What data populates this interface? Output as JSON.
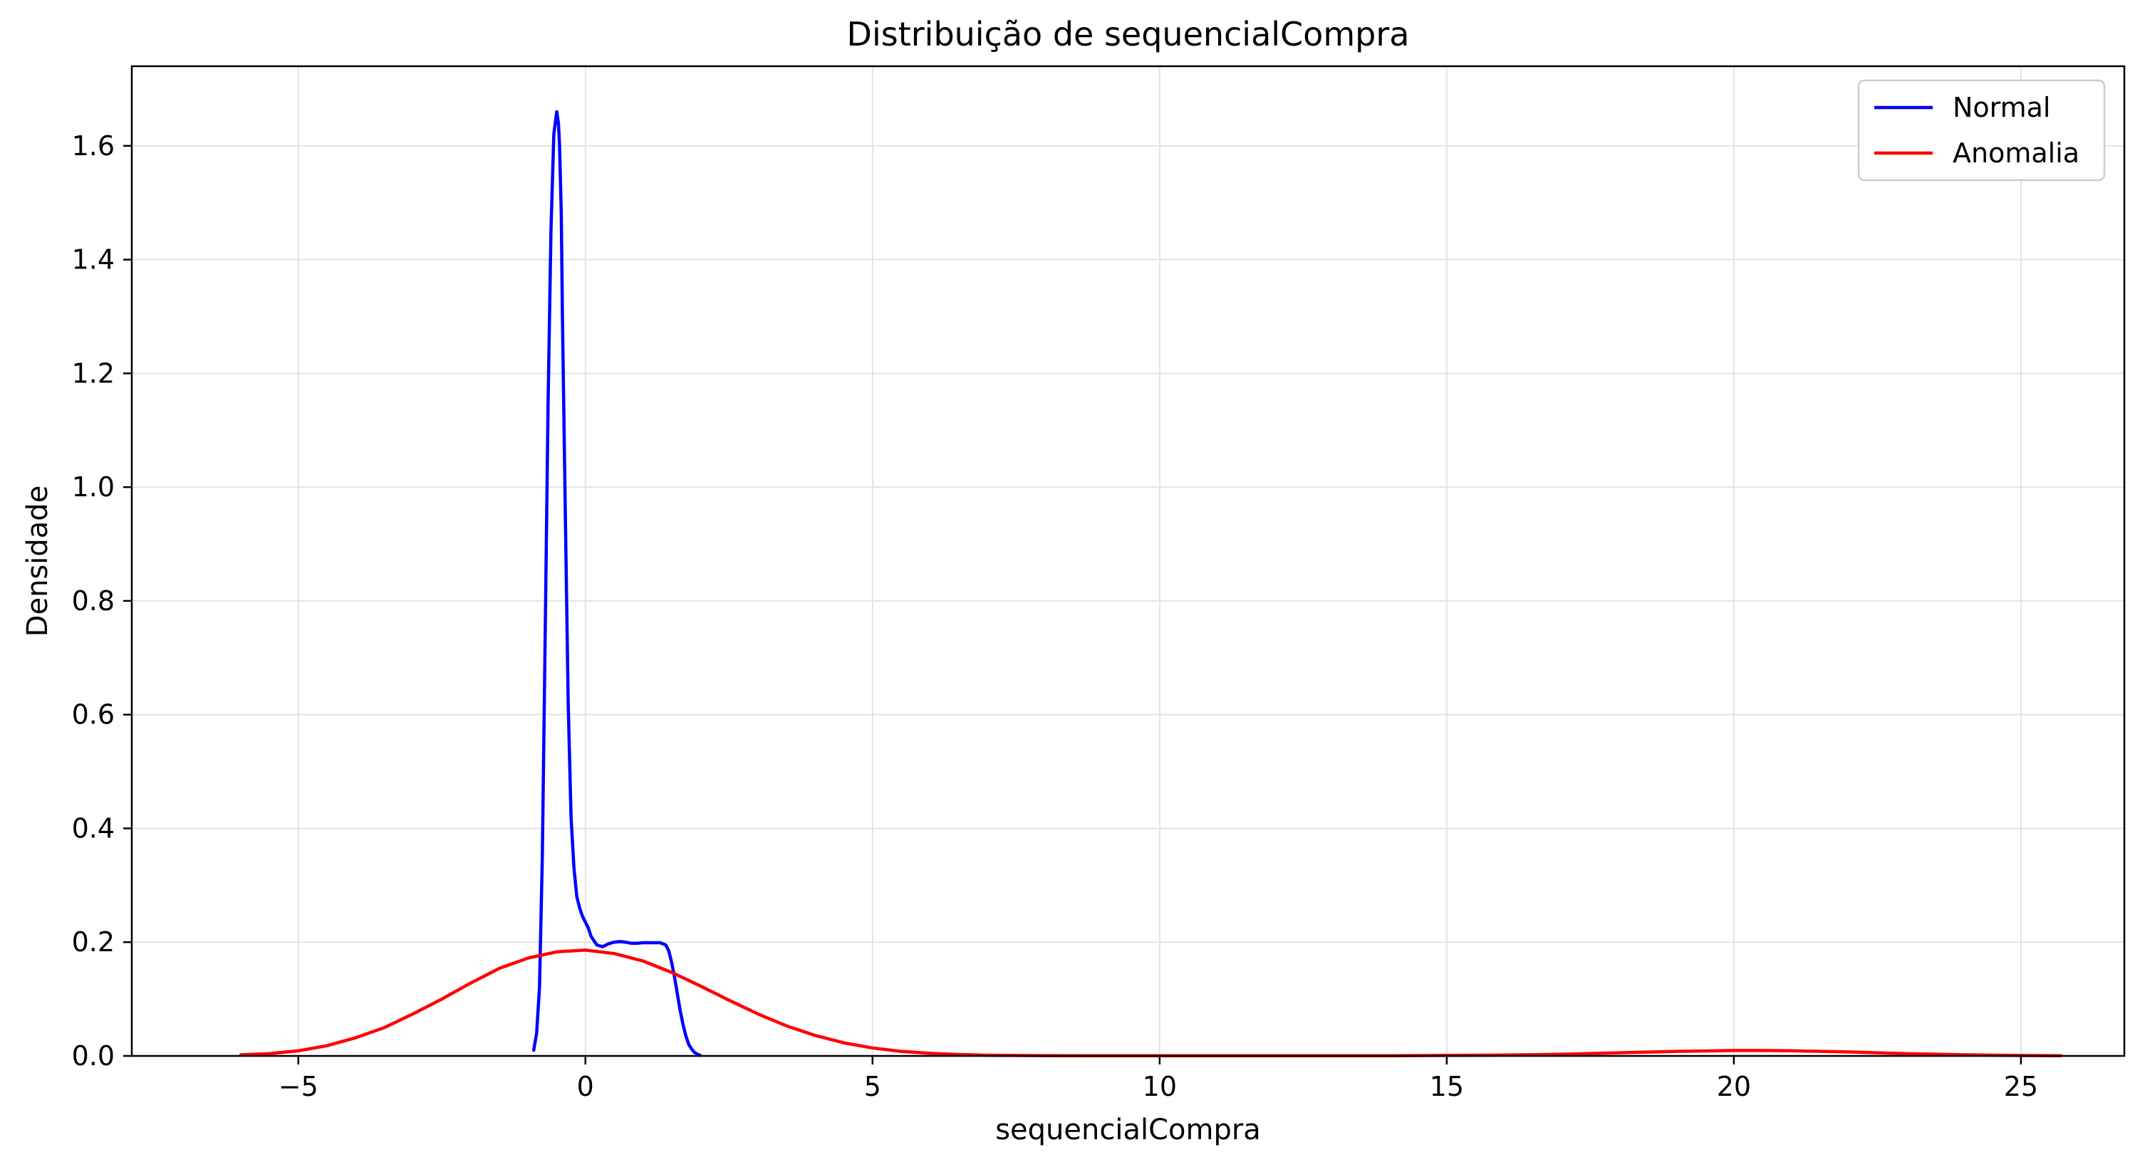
{
  "chart_data": {
    "type": "line",
    "title": "Distribuição de sequencialCompra",
    "xlabel": "sequencialCompra",
    "ylabel": "Densidade",
    "xlim": [
      -7.9,
      26.8
    ],
    "ylim": [
      0.0,
      1.74
    ],
    "xticks": [
      -5,
      0,
      5,
      10,
      15,
      20,
      25
    ],
    "xtick_labels": [
      "−5",
      "0",
      "5",
      "10",
      "15",
      "20",
      "25"
    ],
    "yticks": [
      0.0,
      0.2,
      0.4,
      0.6,
      0.8,
      1.0,
      1.2,
      1.4,
      1.6
    ],
    "ytick_labels": [
      "0.0",
      "0.2",
      "0.4",
      "0.6",
      "0.8",
      "1.0",
      "1.2",
      "1.4",
      "1.6"
    ],
    "grid": true,
    "legend_position": "top-right",
    "series": [
      {
        "name": "Normal",
        "color": "#0000ff",
        "x": [
          -0.9,
          -0.85,
          -0.8,
          -0.75,
          -0.7,
          -0.65,
          -0.6,
          -0.55,
          -0.5,
          -0.47,
          -0.45,
          -0.42,
          -0.4,
          -0.35,
          -0.3,
          -0.25,
          -0.2,
          -0.15,
          -0.1,
          -0.05,
          0.0,
          0.05,
          0.1,
          0.2,
          0.3,
          0.4,
          0.5,
          0.6,
          0.7,
          0.8,
          0.9,
          1.0,
          1.1,
          1.2,
          1.3,
          1.4,
          1.45,
          1.5,
          1.55,
          1.6,
          1.65,
          1.7,
          1.75,
          1.8,
          1.85,
          1.9,
          1.95,
          2.0
        ],
        "y": [
          0.01,
          0.04,
          0.12,
          0.35,
          0.75,
          1.15,
          1.45,
          1.62,
          1.66,
          1.64,
          1.6,
          1.48,
          1.3,
          0.95,
          0.62,
          0.42,
          0.33,
          0.28,
          0.26,
          0.245,
          0.235,
          0.225,
          0.21,
          0.195,
          0.192,
          0.197,
          0.2,
          0.201,
          0.2,
          0.198,
          0.198,
          0.199,
          0.199,
          0.199,
          0.199,
          0.195,
          0.185,
          0.165,
          0.14,
          0.11,
          0.08,
          0.055,
          0.035,
          0.02,
          0.012,
          0.006,
          0.003,
          0.001
        ]
      },
      {
        "name": "Anomalia",
        "color": "#ff0000",
        "x": [
          -6.0,
          -5.5,
          -5.0,
          -4.5,
          -4.0,
          -3.5,
          -3.0,
          -2.5,
          -2.0,
          -1.5,
          -1.0,
          -0.5,
          0.0,
          0.5,
          1.0,
          1.5,
          2.0,
          2.5,
          3.0,
          3.5,
          4.0,
          4.5,
          5.0,
          5.5,
          6.0,
          6.5,
          7.0,
          8.0,
          9.0,
          10.0,
          12.0,
          14.0,
          16.0,
          17.0,
          18.0,
          19.0,
          20.0,
          20.5,
          21.0,
          22.0,
          23.0,
          24.0,
          25.0,
          25.7
        ],
        "y": [
          0.002,
          0.004,
          0.009,
          0.018,
          0.032,
          0.05,
          0.074,
          0.1,
          0.128,
          0.154,
          0.172,
          0.183,
          0.186,
          0.18,
          0.167,
          0.147,
          0.123,
          0.098,
          0.074,
          0.053,
          0.036,
          0.023,
          0.014,
          0.008,
          0.0045,
          0.0025,
          0.0013,
          0.0005,
          0.0003,
          0.0003,
          0.0003,
          0.0004,
          0.0015,
          0.003,
          0.0055,
          0.008,
          0.0095,
          0.0095,
          0.009,
          0.007,
          0.004,
          0.002,
          0.0008,
          0.0004
        ]
      }
    ]
  }
}
